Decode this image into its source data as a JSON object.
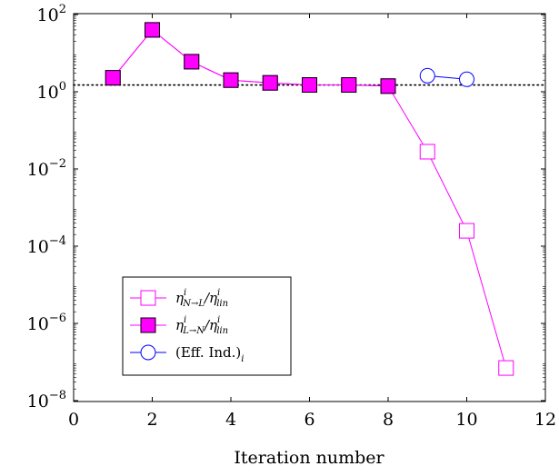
{
  "chart_data": {
    "type": "line",
    "xlabel": "Iteration number",
    "ylabel": "",
    "xlim": [
      0,
      12
    ],
    "ylim_exponent": [
      -8,
      2
    ],
    "y_scale": "log",
    "x_ticks": [
      "0",
      "2",
      "4",
      "6",
      "8",
      "10",
      "12"
    ],
    "y_ticks": [
      {
        "base": "10",
        "exp": "2",
        "value": 100
      },
      {
        "base": "10",
        "exp": "0",
        "value": 1
      },
      {
        "base": "10",
        "exp": "−2",
        "value": 0.01
      },
      {
        "base": "10",
        "exp": "−4",
        "value": 0.0001
      },
      {
        "base": "10",
        "exp": "−6",
        "value": 1e-06
      },
      {
        "base": "10",
        "exp": "−8",
        "value": 1e-08
      }
    ],
    "reference_line": {
      "y": 1.5,
      "style": "dotted",
      "color": "#000000"
    },
    "grid": false,
    "legend_position": "bottom-left",
    "series": [
      {
        "name": "η^i_{N→L}/η^i_{lin}",
        "legend_main": "η",
        "legend_sup": "i",
        "legend_sub": "N→L",
        "legend_mid": "/η",
        "legend_sup2": "i",
        "legend_sub2": "lin",
        "marker": "open-square",
        "color": "#ff00ff",
        "x": [
          1,
          2,
          3,
          4,
          5,
          6,
          7,
          8,
          9,
          10,
          11
        ],
        "y": [
          2.3,
          40,
          6,
          2.0,
          1.7,
          1.5,
          1.5,
          1.4,
          0.028,
          0.00025,
          7e-08
        ]
      },
      {
        "name": "η^i_{L→N}/η^i_{lin}",
        "legend_main": "η",
        "legend_sup": "i",
        "legend_sub": "L→N",
        "legend_mid": "/η",
        "legend_sup2": "i",
        "legend_sub2": "lin",
        "marker": "filled-square",
        "color": "#ff00ff",
        "x": [
          1,
          2,
          3,
          4,
          5,
          6,
          7,
          8
        ],
        "y": [
          2.3,
          40,
          6,
          2.0,
          1.7,
          1.5,
          1.5,
          1.4
        ]
      },
      {
        "name": "(Eff. Ind.)_i",
        "legend_main": "(Eff. Ind.)",
        "legend_sub": "i",
        "marker": "open-circle",
        "color": "#0000ff",
        "x": [
          9,
          10
        ],
        "y": [
          2.6,
          2.1
        ]
      }
    ]
  }
}
